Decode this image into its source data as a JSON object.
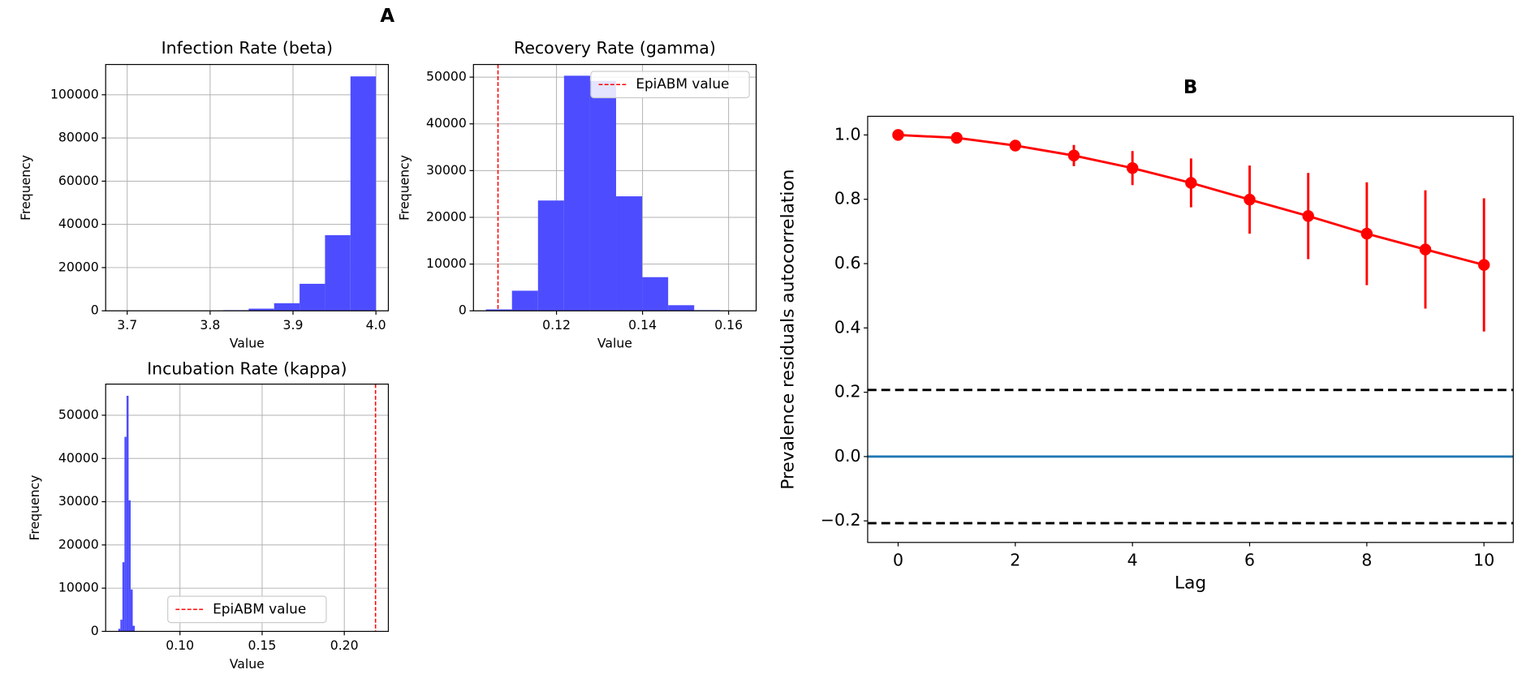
{
  "figure_label": "A",
  "chart_data": [
    {
      "type": "histogram",
      "title": "Infection Rate (beta)",
      "xlabel": "Value",
      "ylabel": "Frequency",
      "bins": [
        3.693,
        3.7237,
        3.7544,
        3.7851,
        3.8158,
        3.8465,
        3.8772,
        3.9079,
        3.9386,
        3.9693,
        4.0
      ],
      "values": [
        2,
        5,
        20,
        80,
        300,
        1000,
        3500,
        12500,
        35000,
        108500
      ],
      "color": "#4d4dff",
      "grid": true,
      "xlim": [
        3.674,
        4.015
      ],
      "xticks": [
        3.7,
        3.8,
        3.9,
        {
          "value": 4,
          "label": "4.0"
        }
      ],
      "ylim": [
        0,
        114000
      ],
      "yticks": [
        0,
        20000,
        40000,
        60000,
        80000,
        100000
      ]
    },
    {
      "type": "histogram",
      "title": "Recovery Rate (gamma)",
      "xlabel": "Value",
      "ylabel": "Frequency",
      "bins": [
        0.1036,
        0.10965,
        0.1157,
        0.12175,
        0.1278,
        0.13385,
        0.1399,
        0.14595,
        0.152,
        0.15805,
        0.1641
      ],
      "values": [
        300,
        4300,
        23600,
        50300,
        49200,
        24500,
        7200,
        1200,
        150,
        10
      ],
      "color": "#4d4dff",
      "grid": true,
      "ref_line": {
        "x": 0.1064,
        "label": "EpiABM value",
        "color": "#ff0000"
      },
      "legend": "upper right",
      "xlim": [
        0.1007,
        0.1664
      ],
      "xticks": [
        0.12,
        0.14,
        0.16
      ],
      "ylim": [
        0,
        52700
      ],
      "yticks": [
        0,
        10000,
        20000,
        30000,
        40000,
        50000
      ]
    },
    {
      "type": "histogram",
      "title": "Incubation Rate (kappa)",
      "xlabel": "Value",
      "ylabel": "Frequency",
      "bins": [
        0.0625,
        0.06375,
        0.065,
        0.06625,
        0.0675,
        0.06875,
        0.07,
        0.07125,
        0.0725
      ],
      "values": [
        600,
        2700,
        16000,
        45000,
        54500,
        30300,
        9700,
        1300
      ],
      "color": "#4d4dff",
      "grid": true,
      "ref_line": {
        "x": 0.219,
        "label": "EpiABM value",
        "color": "#ff0000"
      },
      "legend": "lower center",
      "xlim": [
        0.0548,
        0.2268
      ],
      "xticks": [
        {
          "value": 0.1,
          "label": "0.10"
        },
        0.15,
        {
          "value": 0.2,
          "label": "0.20"
        }
      ],
      "ylim": [
        0,
        57200
      ],
      "yticks": [
        0,
        10000,
        20000,
        30000,
        40000,
        50000
      ]
    },
    {
      "type": "line",
      "title": "B",
      "xlabel": "Lag",
      "ylabel": "Prevalence residuals autocorrelation",
      "x": [
        0,
        1,
        2,
        3,
        4,
        5,
        6,
        7,
        8,
        9,
        10
      ],
      "values": [
        1.0,
        0.991,
        0.967,
        0.936,
        0.897,
        0.851,
        0.799,
        0.748,
        0.693,
        0.644,
        0.596
      ],
      "errors": [
        0,
        0.005,
        0.012,
        0.033,
        0.053,
        0.076,
        0.106,
        0.134,
        0.16,
        0.184,
        0.207
      ],
      "color": "#ff0000",
      "hlines": [
        {
          "y": 0.207,
          "color": "#000000",
          "style": "dashed"
        },
        {
          "y": -0.207,
          "color": "#000000",
          "style": "dashed"
        },
        {
          "y": 0,
          "color": "#1f77b4",
          "style": "solid"
        }
      ],
      "xlim": [
        -0.52,
        10.5
      ],
      "xticks": [
        0,
        2,
        4,
        6,
        8,
        10
      ],
      "ylim": [
        -0.267,
        1.058
      ],
      "yticks": [
        {
          "value": -0.2,
          "label": "−0.2"
        },
        {
          "value": 0,
          "label": "0.0"
        },
        0.2,
        0.4,
        0.6,
        0.8,
        {
          "value": 1,
          "label": "1.0"
        }
      ]
    }
  ]
}
